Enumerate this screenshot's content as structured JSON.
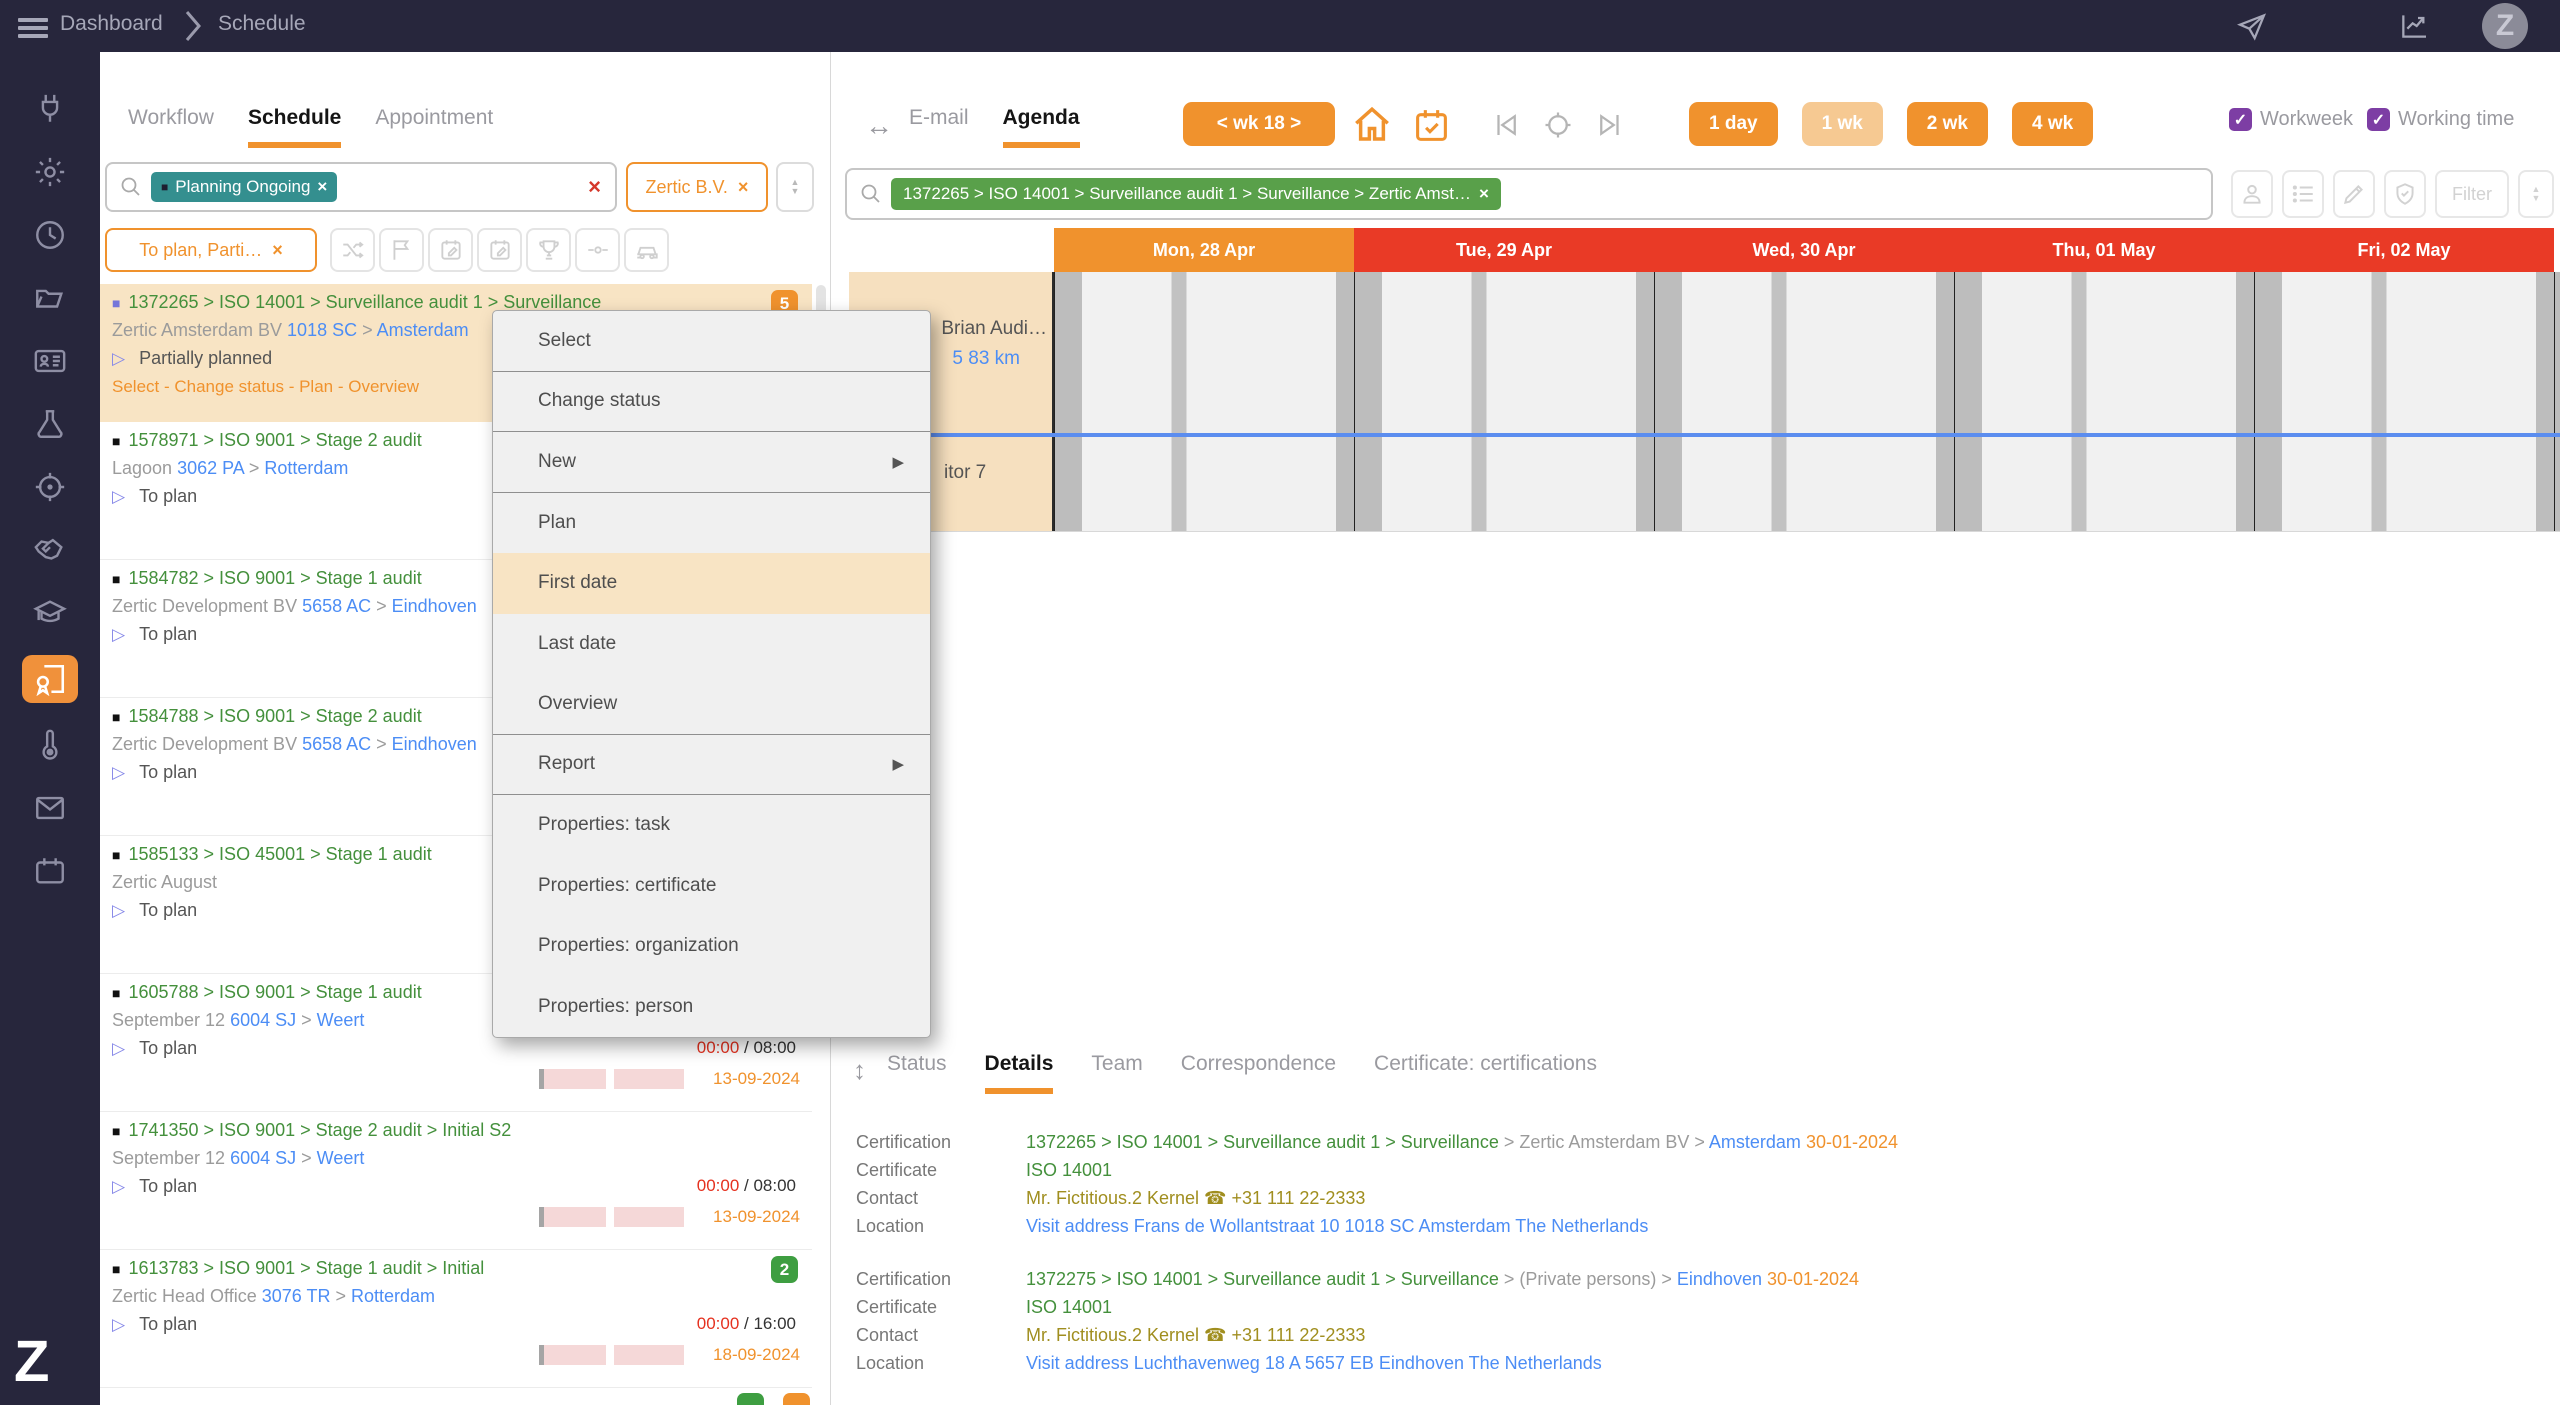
{
  "colors": {
    "topbar_bg": "#27263C",
    "accent_orange": "#F0922D",
    "day_red": "#E93A26",
    "teal_chip": "#348F8F",
    "green_chip": "#59A04A",
    "link_blue": "#4C8DF5",
    "path_green": "#44903C",
    "highlight_cream": "#F8E4C4",
    "checkbox_purple": "#7D3EA4",
    "time_red": "#E5311F",
    "contact_olive": "#A08E1F",
    "progress_pink": "#F5D8D8"
  },
  "icons": {
    "square": "■",
    "triangle": "▷",
    "close": "×",
    "sort_up": "▲",
    "sort_down": "▼",
    "submenu_arrow": "▶",
    "updown": "↕",
    "leftright": "↔",
    "check": "✓"
  },
  "topbar": {
    "breadcrumb": [
      "Dashboard",
      "Schedule"
    ],
    "avatar": "Z"
  },
  "sidebar": {
    "logo": "Z",
    "active_item": "certification"
  },
  "left_panel": {
    "tabs": [
      {
        "label": "Workflow",
        "active": "no"
      },
      {
        "label": "Schedule",
        "active": "yes"
      },
      {
        "label": "Appointment",
        "active": "no"
      }
    ],
    "filter_chip": "Planning Ongoing",
    "org_chip": "Zertic B.V.",
    "status_chip": "To plan, Parti…",
    "tasks": [
      {
        "bullet": "purple",
        "highlighted": "yes",
        "path": "1372265 > ISO 14001 > Surveillance audit 1 > Surveillance",
        "badge": "5",
        "badge_color": "orange",
        "line2": [
          {
            "t": "Zertic Amsterdam BV ",
            "c": "gray"
          },
          {
            "t": "1018 SC",
            "c": "blue"
          },
          {
            "t": " > ",
            "c": "gray"
          },
          {
            "t": "Amsterdam",
            "c": "blue"
          }
        ],
        "status": "Partially planned",
        "links": "Select - Change status - Plan - Overview"
      },
      {
        "bullet": "black",
        "path": "1578971 > ISO 9001 > Stage 2 audit",
        "line2": [
          {
            "t": "Lagoon ",
            "c": "gray"
          },
          {
            "t": "3062 PA",
            "c": "blue"
          },
          {
            "t": " > ",
            "c": "gray"
          },
          {
            "t": "Rotterdam",
            "c": "blue"
          }
        ],
        "status": "To plan"
      },
      {
        "bullet": "black",
        "path": "1584782 > ISO 9001 > Stage 1 audit",
        "line2": [
          {
            "t": "Zertic Development BV ",
            "c": "gray"
          },
          {
            "t": "5658 AC",
            "c": "blue"
          },
          {
            "t": " > ",
            "c": "gray"
          },
          {
            "t": "Eindhoven",
            "c": "blue"
          }
        ],
        "status": "To plan"
      },
      {
        "bullet": "black",
        "path": "1584788 > ISO 9001 > Stage 2 audit",
        "line2": [
          {
            "t": "Zertic Development BV ",
            "c": "gray"
          },
          {
            "t": "5658 AC",
            "c": "blue"
          },
          {
            "t": " > ",
            "c": "gray"
          },
          {
            "t": "Eindhoven",
            "c": "blue"
          }
        ],
        "status": "To plan"
      },
      {
        "bullet": "black",
        "path": "1585133 > ISO 45001 > Stage 1 audit",
        "line2": [
          {
            "t": "Zertic August",
            "c": "gray"
          }
        ],
        "status": "To plan"
      },
      {
        "bullet": "black",
        "path": "1605788 > ISO 9001 > Stage 1 audit",
        "line2": [
          {
            "t": "September 12 ",
            "c": "gray"
          },
          {
            "t": "6004 SJ",
            "c": "blue"
          },
          {
            "t": " > ",
            "c": "gray"
          },
          {
            "t": "Weert",
            "c": "blue"
          }
        ],
        "status": "To plan",
        "time_used": "00:00",
        "time_total": " / 08:00",
        "date": "13-09-2024"
      },
      {
        "bullet": "black",
        "path": "1741350 > ISO 9001 > Stage 2 audit > Initial S2",
        "line2": [
          {
            "t": "September 12 ",
            "c": "gray"
          },
          {
            "t": "6004 SJ",
            "c": "blue"
          },
          {
            "t": " > ",
            "c": "gray"
          },
          {
            "t": "Weert",
            "c": "blue"
          }
        ],
        "status": "To plan",
        "time_used": "00:00",
        "time_total": " / 08:00",
        "date": "13-09-2024"
      },
      {
        "bullet": "black",
        "path": "1613783 > ISO 9001 > Stage 1 audit > Initial",
        "badge": "2",
        "badge_color": "green",
        "line2": [
          {
            "t": "Zertic Head Office ",
            "c": "gray"
          },
          {
            "t": "3076 TR",
            "c": "blue"
          },
          {
            "t": " > ",
            "c": "gray"
          },
          {
            "t": "Rotterdam",
            "c": "blue"
          }
        ],
        "status": "To plan",
        "time_used": "00:00",
        "time_total": " / 16:00",
        "date": "18-09-2024"
      }
    ]
  },
  "context_menu": {
    "items": [
      {
        "label": "Select",
        "sep": "yes"
      },
      {
        "label": "Change status",
        "sep": "yes"
      },
      {
        "label": "New",
        "sub": "yes",
        "sep": "yes"
      },
      {
        "label": "Plan"
      },
      {
        "label": "First date",
        "hl": "yes"
      },
      {
        "label": "Last date"
      },
      {
        "label": "Overview",
        "sep": "yes"
      },
      {
        "label": "Report",
        "sub": "yes",
        "sep": "yes"
      },
      {
        "label": "Properties: task"
      },
      {
        "label": "Properties: certificate"
      },
      {
        "label": "Properties: organization"
      },
      {
        "label": "Properties: person"
      }
    ]
  },
  "right_panel": {
    "tabs": [
      {
        "label": "E-mail",
        "active": "no"
      },
      {
        "label": "Agenda",
        "active": "yes"
      }
    ],
    "week_nav": "< wk 18 >",
    "zoom_buttons": [
      {
        "label": "1 day",
        "variant": "solid"
      },
      {
        "label": "1 wk",
        "variant": "light"
      },
      {
        "label": "2 wk",
        "variant": "solid"
      },
      {
        "label": "4 wk",
        "variant": "solid"
      }
    ],
    "checkboxes": [
      {
        "label": "Workweek"
      },
      {
        "label": "Working time"
      }
    ],
    "search_chip": "1372265 > ISO 14001 > Surveillance audit 1 > Surveillance > Zertic Amst…",
    "filter_button": "Filter",
    "days": [
      {
        "label": "Mon, 28 Apr",
        "color": "orange"
      },
      {
        "label": "Tue, 29 Apr",
        "color": "red"
      },
      {
        "label": "Wed, 30 Apr",
        "color": "red"
      },
      {
        "label": "Thu, 01 May",
        "color": "red"
      },
      {
        "label": "Fri, 02 May",
        "color": "red"
      }
    ],
    "resources": [
      {
        "name": "Brian Audi…",
        "meta": "5  83 km"
      },
      {
        "name": "itor 7"
      }
    ],
    "bottom_tabs": [
      {
        "label": "Status",
        "active": "no"
      },
      {
        "label": "Details",
        "active": "yes"
      },
      {
        "label": "Team",
        "active": "no"
      },
      {
        "label": "Correspondence",
        "active": "no"
      },
      {
        "label": "Certificate: certifications",
        "active": "no"
      }
    ],
    "details1": [
      {
        "label": "Certification",
        "segs": [
          {
            "t": "1372265 > ISO 14001 > Surveillance audit 1 > Surveillance",
            "c": "green"
          },
          {
            "t": " > Zertic Amsterdam BV > ",
            "c": "gray"
          },
          {
            "t": "Amsterdam",
            "c": "blue"
          },
          {
            "t": " 30-01-2024",
            "c": "orange"
          }
        ]
      },
      {
        "label": "Certificate",
        "segs": [
          {
            "t": "ISO 14001",
            "c": "green"
          }
        ]
      },
      {
        "label": "Contact",
        "segs": [
          {
            "t": "Mr. Fictitious.2 Kernel ☎ +31 111 22-2333",
            "c": "olive"
          }
        ]
      },
      {
        "label": "Location",
        "segs": [
          {
            "t": "Visit address Frans de Wollantstraat 10 1018 SC Amsterdam The Netherlands",
            "c": "blue"
          }
        ]
      }
    ],
    "details2": [
      {
        "label": "Certification",
        "segs": [
          {
            "t": "1372275 > ISO 14001 > Surveillance audit 1 > Surveillance",
            "c": "green"
          },
          {
            "t": " > (Private persons) > ",
            "c": "gray"
          },
          {
            "t": "Eindhoven",
            "c": "blue"
          },
          {
            "t": " 30-01-2024",
            "c": "orange"
          }
        ]
      },
      {
        "label": "Certificate",
        "segs": [
          {
            "t": "ISO 14001",
            "c": "green"
          }
        ]
      },
      {
        "label": "Contact",
        "segs": [
          {
            "t": "Mr. Fictitious.2 Kernel ☎ +31 111 22-2333",
            "c": "olive"
          }
        ]
      },
      {
        "label": "Location",
        "segs": [
          {
            "t": "Visit address Luchthavenweg 18 A 5657 EB Eindhoven The Netherlands",
            "c": "blue"
          }
        ]
      }
    ]
  }
}
